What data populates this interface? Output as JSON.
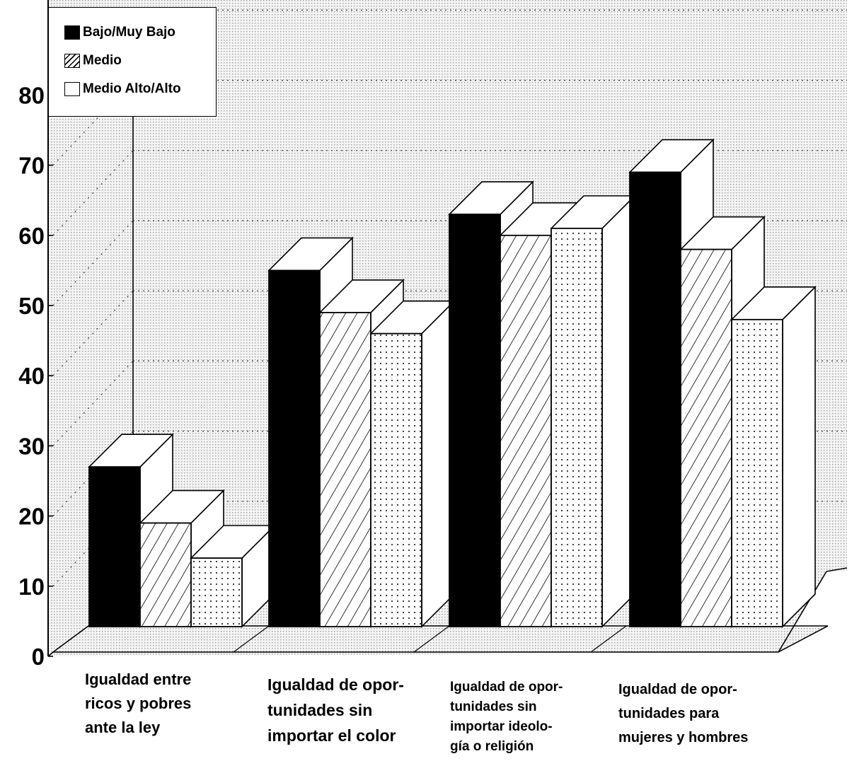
{
  "chart_data": {
    "type": "bar",
    "categories": [
      "Igualdad entre\nricos y pobres\nante la ley",
      "Igualdad de opor-\ntunidades sin\nimportar el color",
      "Igualdad de opor-\ntunidades sin\nimportar ideolo-\ngía o religión",
      "Igualdad de opor-\ntunidades para\nmujeres y hombres"
    ],
    "series": [
      {
        "name": "Bajo/Muy Bajo",
        "values": [
          27,
          55,
          63,
          69
        ]
      },
      {
        "name": "Medio",
        "values": [
          19,
          49,
          60,
          58
        ]
      },
      {
        "name": "Medio Alto/Alto",
        "values": [
          14,
          46,
          61,
          48
        ]
      }
    ],
    "yticks": [
      "0",
      "10",
      "20",
      "30",
      "40",
      "50",
      "60",
      "70",
      "80"
    ],
    "ylim": [
      0,
      80
    ],
    "grid": true,
    "legend_position": "top-left",
    "colors": {
      "series1": "#000000",
      "series2": "hatch",
      "series3": "dotted-white",
      "background": "#e9e9e9"
    }
  }
}
